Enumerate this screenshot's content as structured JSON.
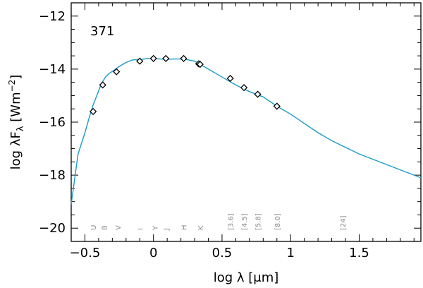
{
  "chart_data": {
    "type": "line",
    "panel_label": "371",
    "xlabel_prefix": "log λ [",
    "xlabel_mu": "μ",
    "xlabel_suffix": "m]",
    "ylabel_prefix": "log λF",
    "ylabel_sub": "λ",
    "ylabel_unit": " [Wm",
    "ylabel_exp": "−2",
    "ylabel_close": "]",
    "xlim": [
      -0.6,
      1.95
    ],
    "ylim": [
      -20.5,
      -11.5
    ],
    "x_ticks": [
      -0.5,
      0,
      0.5,
      1,
      1.5
    ],
    "x_tick_labels": [
      "−0.5",
      "0",
      "0.5",
      "1",
      "1.5"
    ],
    "y_ticks": [
      -20,
      -18,
      -16,
      -14,
      -12
    ],
    "y_tick_labels": [
      "−20",
      "−18",
      "−16",
      "−14",
      "−12"
    ],
    "line_color": "#1a9bc9",
    "band_label_color": "#8a8a8a",
    "model_curve": {
      "name": "",
      "x": [
        -0.6,
        -0.55,
        -0.5,
        -0.47,
        -0.44,
        -0.41,
        -0.38,
        -0.35,
        -0.32,
        -0.29,
        -0.25,
        -0.2,
        -0.15,
        -0.1,
        -0.05,
        0.0,
        0.05,
        0.1,
        0.15,
        0.2,
        0.25,
        0.3,
        0.35,
        0.4,
        0.5,
        0.6,
        0.7,
        0.8,
        0.9,
        1.0,
        1.1,
        1.2,
        1.3,
        1.4,
        1.5,
        1.6,
        1.7,
        1.8,
        1.9,
        1.95
      ],
      "y": [
        -19.1,
        -17.2,
        -16.4,
        -15.85,
        -15.35,
        -14.95,
        -14.55,
        -14.3,
        -14.15,
        -14.05,
        -13.9,
        -13.75,
        -13.65,
        -13.65,
        -13.6,
        -13.6,
        -13.62,
        -13.63,
        -13.62,
        -13.62,
        -13.65,
        -13.7,
        -13.85,
        -14.0,
        -14.3,
        -14.6,
        -14.85,
        -15.05,
        -15.4,
        -15.7,
        -16.05,
        -16.4,
        -16.7,
        -16.95,
        -17.2,
        -17.4,
        -17.6,
        -17.8,
        -18.0,
        -18.1
      ]
    },
    "photometry": {
      "name": "",
      "x": [
        -0.44,
        -0.37,
        -0.27,
        -0.1,
        0.0,
        0.09,
        0.22,
        0.33,
        0.34,
        0.56,
        0.66,
        0.76,
        0.9
      ],
      "y": [
        -15.6,
        -14.6,
        -14.1,
        -13.7,
        -13.6,
        -13.6,
        -13.6,
        -13.8,
        -13.82,
        -14.35,
        -14.7,
        -14.95,
        -15.4
      ]
    },
    "bands": [
      {
        "label": "U",
        "x": -0.44
      },
      {
        "label": "B",
        "x": -0.36
      },
      {
        "label": "V",
        "x": -0.26
      },
      {
        "label": "I",
        "x": -0.1
      },
      {
        "label": "Y",
        "x": 0.01
      },
      {
        "label": "J",
        "x": 0.09
      },
      {
        "label": "H",
        "x": 0.22
      },
      {
        "label": "K",
        "x": 0.34
      },
      {
        "label": "[3.6]",
        "x": 0.56
      },
      {
        "label": "[4.5]",
        "x": 0.66
      },
      {
        "label": "[5.8]",
        "x": 0.76
      },
      {
        "label": "[8.0]",
        "x": 0.9
      },
      {
        "label": "[24]",
        "x": 1.38
      }
    ],
    "grid": false,
    "legend": "none"
  }
}
